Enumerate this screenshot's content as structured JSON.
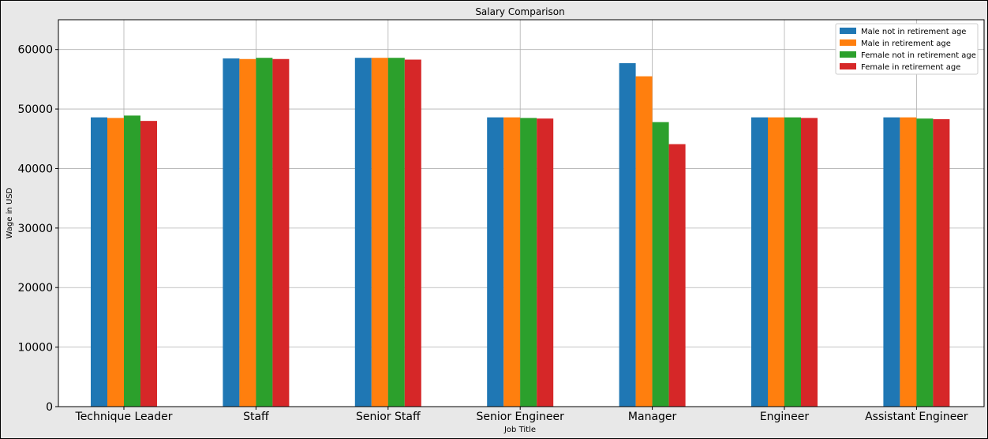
{
  "chart_data": {
    "type": "bar",
    "title": "Salary Comparison",
    "xlabel": "Job Title",
    "ylabel": "Wage in USD",
    "ylim": [
      0,
      65000
    ],
    "yticks": [
      0,
      10000,
      20000,
      30000,
      40000,
      50000,
      60000
    ],
    "grid": true,
    "legend_position": "top-right",
    "categories": [
      "Technique Leader",
      "Staff",
      "Senior Staff",
      "Senior Engineer",
      "Manager",
      "Engineer",
      "Assistant Engineer"
    ],
    "series": [
      {
        "name": "Male not in retirement age",
        "color": "#1f77b4",
        "values": [
          48600,
          58500,
          58600,
          48600,
          57700,
          48600,
          48600
        ]
      },
      {
        "name": "Male in retirement age",
        "color": "#ff7f0e",
        "values": [
          48500,
          58400,
          58600,
          48600,
          55500,
          48600,
          48600
        ]
      },
      {
        "name": "Female not in retirement age",
        "color": "#2ca02c",
        "values": [
          48900,
          58600,
          58600,
          48500,
          47800,
          48600,
          48400
        ]
      },
      {
        "name": "Female in retirement age",
        "color": "#d62728",
        "values": [
          48000,
          58400,
          58300,
          48400,
          44100,
          48500,
          48300
        ]
      }
    ]
  }
}
